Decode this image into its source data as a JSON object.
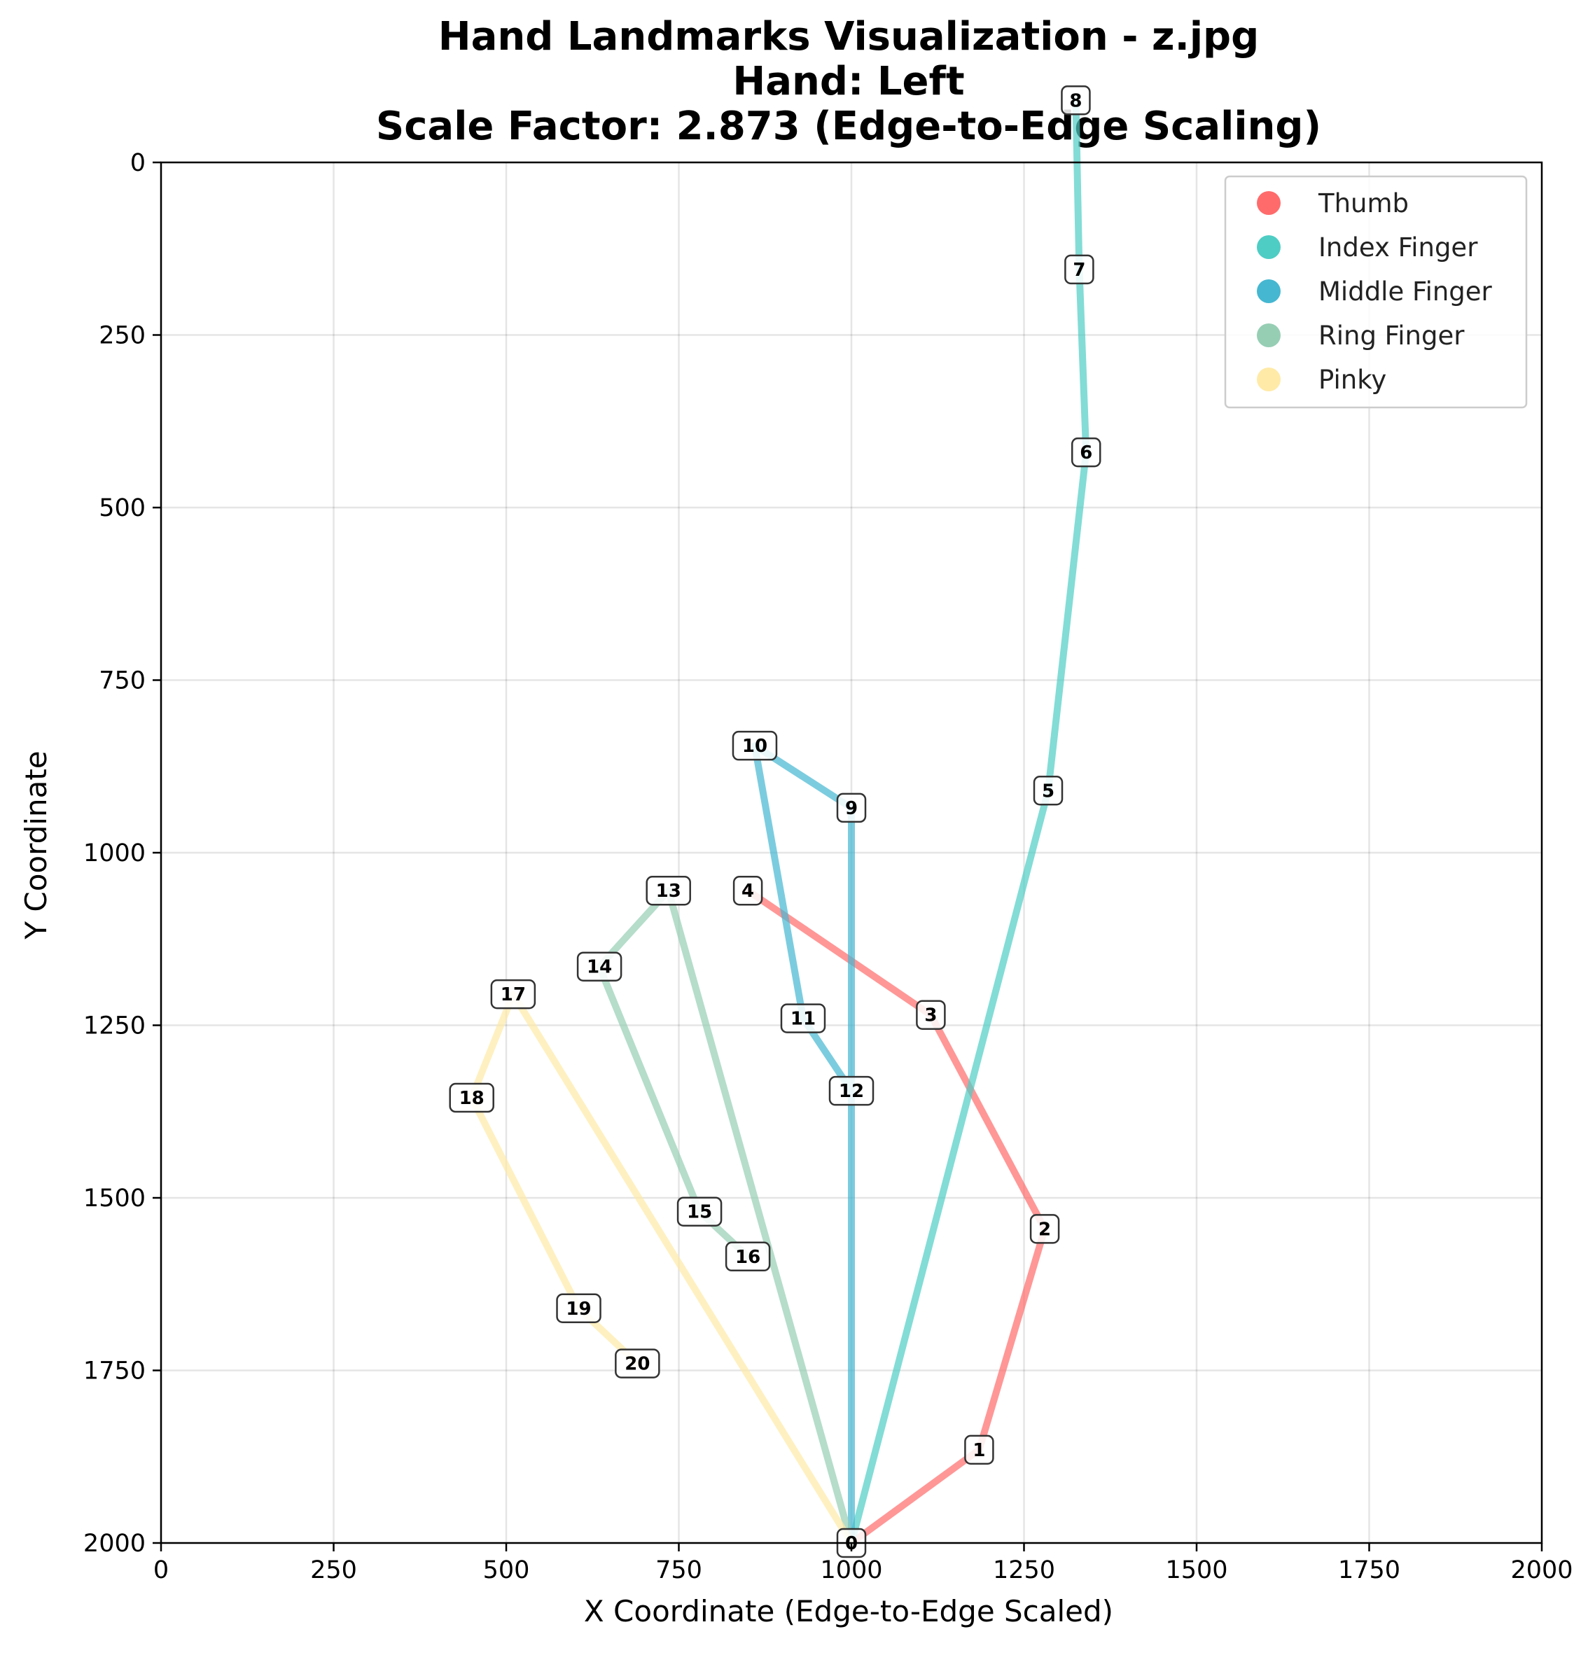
{
  "chart_data": {
    "type": "line",
    "title_lines": [
      "Hand Landmarks Visualization - z.jpg",
      "Hand: Left",
      "Scale Factor: 2.873 (Edge-to-Edge Scaling)"
    ],
    "xlabel": "X Coordinate (Edge-to-Edge Scaled)",
    "ylabel": "Y Coordinate",
    "xlim": [
      0,
      2000
    ],
    "ylim": [
      2000,
      0
    ],
    "y_inverted": true,
    "xticks": [
      0,
      250,
      500,
      750,
      1000,
      1250,
      1500,
      1750,
      2000
    ],
    "yticks": [
      0,
      250,
      500,
      750,
      1000,
      1250,
      1500,
      1750,
      2000
    ],
    "grid": true,
    "legend_position": "top-right",
    "landmarks": [
      {
        "id": "0",
        "x": 1000,
        "y": 2000
      },
      {
        "id": "1",
        "x": 1185,
        "y": 1865
      },
      {
        "id": "2",
        "x": 1280,
        "y": 1545
      },
      {
        "id": "3",
        "x": 1115,
        "y": 1235
      },
      {
        "id": "4",
        "x": 850,
        "y": 1055
      },
      {
        "id": "5",
        "x": 1285,
        "y": 910
      },
      {
        "id": "6",
        "x": 1340,
        "y": 420
      },
      {
        "id": "7",
        "x": 1330,
        "y": 155
      },
      {
        "id": "8",
        "x": 1325,
        "y": -90
      },
      {
        "id": "9",
        "x": 1000,
        "y": 935
      },
      {
        "id": "10",
        "x": 860,
        "y": 845
      },
      {
        "id": "11",
        "x": 930,
        "y": 1240
      },
      {
        "id": "12",
        "x": 1000,
        "y": 1345
      },
      {
        "id": "13",
        "x": 735,
        "y": 1055
      },
      {
        "id": "14",
        "x": 635,
        "y": 1165
      },
      {
        "id": "15",
        "x": 780,
        "y": 1520
      },
      {
        "id": "16",
        "x": 850,
        "y": 1585
      },
      {
        "id": "17",
        "x": 510,
        "y": 1205
      },
      {
        "id": "18",
        "x": 450,
        "y": 1355
      },
      {
        "id": "19",
        "x": 605,
        "y": 1660
      },
      {
        "id": "20",
        "x": 690,
        "y": 1740
      }
    ],
    "series": [
      {
        "name": "Thumb",
        "color": "#FF6B6B",
        "indices": [
          0,
          1,
          2,
          3,
          4
        ]
      },
      {
        "name": "Index Finger",
        "color": "#4ECDC4",
        "indices": [
          0,
          5,
          6,
          7,
          8
        ]
      },
      {
        "name": "Middle Finger",
        "color": "#45B7D1",
        "indices": [
          0,
          9,
          10,
          11,
          12
        ]
      },
      {
        "name": "Ring Finger",
        "color": "#96CEB4",
        "indices": [
          0,
          13,
          14,
          15,
          16
        ]
      },
      {
        "name": "Pinky",
        "color": "#FFEAA7",
        "indices": [
          0,
          17,
          18,
          19,
          20
        ]
      }
    ]
  }
}
